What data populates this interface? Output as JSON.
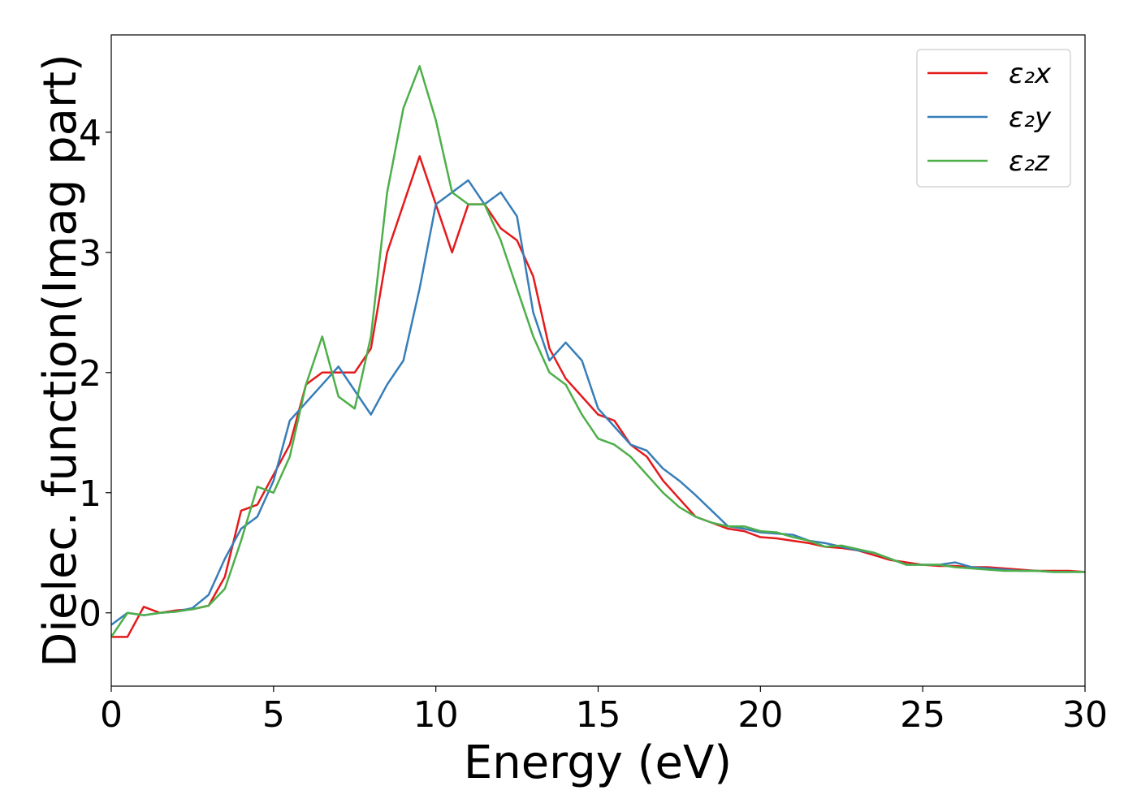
{
  "chart_data": {
    "type": "line",
    "xlabel": "Energy (eV)",
    "ylabel": "Dielec. function(Imag part)",
    "x": [
      0,
      0.5,
      1,
      1.5,
      2,
      2.5,
      3,
      3.5,
      4,
      4.5,
      5,
      5.5,
      6,
      6.5,
      7,
      7.5,
      8,
      8.5,
      9,
      9.5,
      10,
      10.5,
      11,
      11.5,
      12,
      12.5,
      13,
      13.5,
      14,
      14.5,
      15,
      15.5,
      16,
      16.5,
      17,
      17.5,
      18,
      18.5,
      19,
      19.5,
      20,
      20.5,
      21,
      21.5,
      22,
      22.5,
      23,
      23.5,
      24,
      24.5,
      25,
      25.5,
      26,
      26.5,
      27,
      27.5,
      28,
      28.5,
      29,
      29.5,
      30
    ],
    "series": [
      {
        "name": "ε₂x",
        "color": "#e41a1c",
        "values": [
          -0.2,
          -0.2,
          0.05,
          0.0,
          0.02,
          0.03,
          0.06,
          0.3,
          0.85,
          0.9,
          1.15,
          1.4,
          1.9,
          2.0,
          2.0,
          2.0,
          2.2,
          3.0,
          3.4,
          3.8,
          3.4,
          3.0,
          3.4,
          3.4,
          3.2,
          3.1,
          2.8,
          2.2,
          1.95,
          1.8,
          1.65,
          1.6,
          1.4,
          1.3,
          1.1,
          0.95,
          0.8,
          0.75,
          0.7,
          0.68,
          0.63,
          0.62,
          0.6,
          0.58,
          0.55,
          0.54,
          0.52,
          0.48,
          0.44,
          0.42,
          0.4,
          0.39,
          0.39,
          0.38,
          0.38,
          0.37,
          0.36,
          0.35,
          0.35,
          0.35,
          0.34
        ]
      },
      {
        "name": "ε₂y",
        "color": "#377eb8",
        "values": [
          -0.1,
          0.0,
          -0.02,
          0.0,
          0.01,
          0.04,
          0.15,
          0.45,
          0.7,
          0.8,
          1.1,
          1.6,
          1.75,
          1.9,
          2.05,
          1.85,
          1.65,
          1.9,
          2.1,
          2.7,
          3.4,
          3.5,
          3.6,
          3.4,
          3.5,
          3.3,
          2.5,
          2.1,
          2.25,
          2.1,
          1.7,
          1.55,
          1.4,
          1.35,
          1.2,
          1.1,
          0.98,
          0.85,
          0.72,
          0.7,
          0.67,
          0.66,
          0.65,
          0.6,
          0.58,
          0.55,
          0.52,
          0.5,
          0.45,
          0.4,
          0.4,
          0.4,
          0.42,
          0.38,
          0.37,
          0.36,
          0.35,
          0.35,
          0.34,
          0.34,
          0.34
        ]
      },
      {
        "name": "ε₂z",
        "color": "#4daf4a",
        "values": [
          -0.2,
          0.0,
          -0.02,
          0.0,
          0.01,
          0.03,
          0.06,
          0.2,
          0.6,
          1.05,
          1.0,
          1.3,
          1.9,
          2.3,
          1.8,
          1.7,
          2.3,
          3.5,
          4.2,
          4.55,
          4.1,
          3.5,
          3.4,
          3.4,
          3.1,
          2.7,
          2.3,
          2.0,
          1.9,
          1.65,
          1.45,
          1.4,
          1.3,
          1.15,
          1.0,
          0.88,
          0.8,
          0.75,
          0.72,
          0.72,
          0.68,
          0.67,
          0.63,
          0.6,
          0.55,
          0.56,
          0.53,
          0.5,
          0.45,
          0.4,
          0.4,
          0.4,
          0.38,
          0.37,
          0.36,
          0.35,
          0.35,
          0.35,
          0.34,
          0.34,
          0.34
        ]
      }
    ],
    "xlim": [
      0,
      30
    ],
    "xticks": [
      0,
      5,
      10,
      15,
      20,
      25,
      30
    ],
    "ylim": [
      -0.61,
      4.81
    ],
    "yticks": [
      0,
      1,
      2,
      3,
      4
    ],
    "grid": false,
    "legend": "upper right"
  }
}
